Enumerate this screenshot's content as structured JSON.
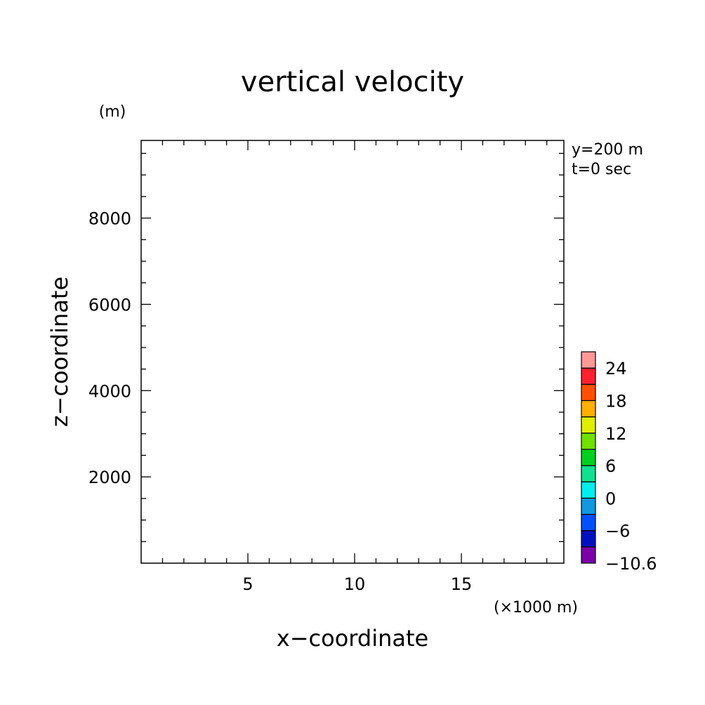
{
  "chart_data": {
    "type": "heatmap",
    "title": "vertical velocity",
    "xlabel": "x−coordinate",
    "ylabel": "z−coordinate",
    "x_unit": "(×1000 m)",
    "y_unit": "(m)",
    "annotations": [
      "y=200 m",
      "t=0 sec"
    ],
    "xlim": [
      0,
      19.8
    ],
    "ylim": [
      0,
      9800
    ],
    "x_major_ticks": [
      5,
      10,
      15
    ],
    "x_minor_step": 1,
    "y_major_ticks": [
      2000,
      4000,
      6000,
      8000
    ],
    "y_minor_step": 500,
    "tick_labels_x": [
      "5",
      "10",
      "15"
    ],
    "tick_labels_y": [
      "2000",
      "4000",
      "6000",
      "8000"
    ],
    "values": [],
    "grid": false,
    "colorbar": {
      "placement": "right",
      "boundaries": [
        -10.6,
        -9,
        -6,
        -3,
        0,
        3,
        6,
        9,
        12,
        15,
        18,
        21,
        24,
        25
      ],
      "colors": [
        "#7a00a8",
        "#0010c0",
        "#0050ff",
        "#1098e0",
        "#00eef0",
        "#10e090",
        "#00d020",
        "#70e000",
        "#e0ee00",
        "#ffb000",
        "#ff5000",
        "#ff2030",
        "#ff9898"
      ],
      "labels": [
        {
          "value": 24,
          "text": "24"
        },
        {
          "value": 18,
          "text": "18"
        },
        {
          "value": 12,
          "text": "12"
        },
        {
          "value": 6,
          "text": "6"
        },
        {
          "value": 0,
          "text": "0"
        },
        {
          "value": -6,
          "text": "−6"
        },
        {
          "value": -10.6,
          "text": "−10.6"
        }
      ]
    }
  }
}
